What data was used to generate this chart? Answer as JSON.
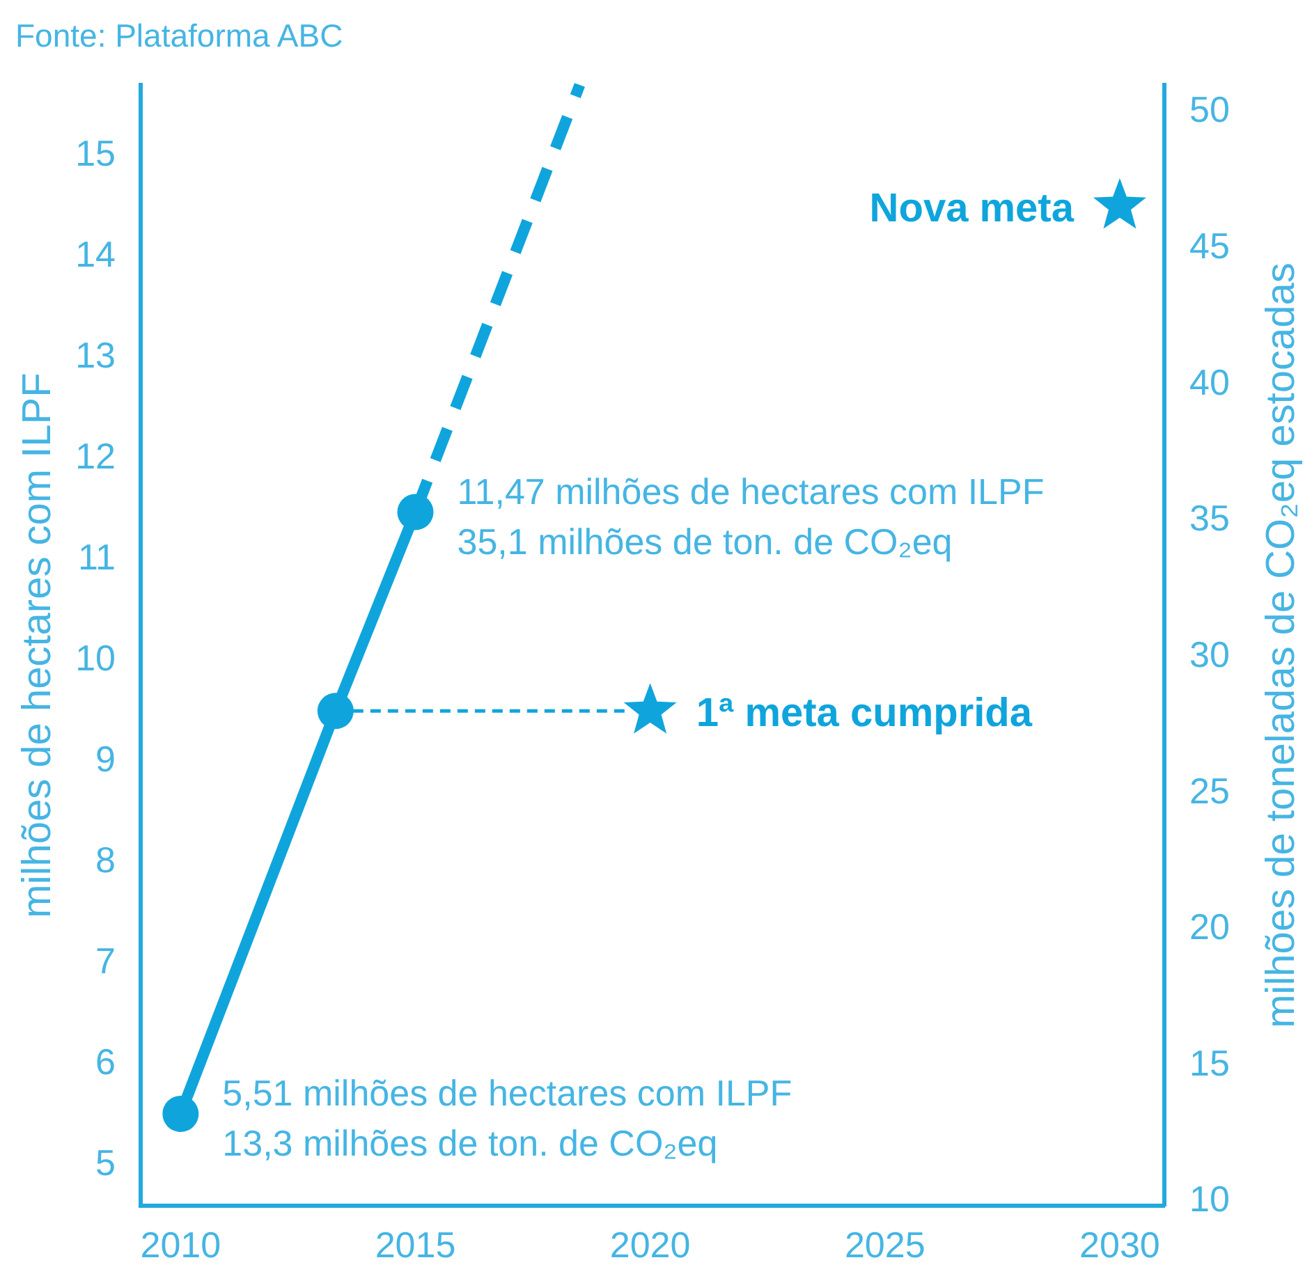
{
  "chart_data": {
    "type": "line",
    "ylabel": "milhões de hectares com ILPF",
    "y2label": "milhões de toneladas de CO₂eq estocadas",
    "xlim": [
      2009.15,
      2030.95
    ],
    "xticks": [
      2010,
      2015,
      2020,
      2025,
      2030
    ],
    "ylim": [
      4.6,
      15.7
    ],
    "yticks": [
      5,
      6,
      7,
      8,
      9,
      10,
      11,
      12,
      13,
      14,
      15
    ],
    "y2lim": [
      9.85,
      51
    ],
    "y2ticks": [
      10,
      15,
      20,
      25,
      30,
      35,
      40,
      45,
      50
    ],
    "series": [
      {
        "color": "#0fa5dc",
        "x": [
          2010,
          2013.3,
          2015
        ],
        "values": [
          5.51,
          9.5,
          11.47
        ],
        "marker": "circle",
        "line_style": "solid"
      },
      {
        "color": "#0fa5dc",
        "x": [
          2015,
          2018.5
        ],
        "values": [
          11.47,
          15.7
        ],
        "marker": "none",
        "line_style": "dashed"
      },
      {
        "color": "#0fa5dc",
        "x": [
          2013.3,
          2019.5
        ],
        "values": [
          9.5,
          9.5
        ],
        "marker": "none",
        "line_style": "dashed"
      },
      {
        "type": "scatter",
        "color": "#0fa5dc",
        "x": [
          2020,
          2030
        ],
        "values": [
          9.5,
          14.5
        ],
        "marker": "star"
      }
    ],
    "annotations": [
      "Fonte: Plataforma ABC",
      {
        "text": "5,51 milhões de hectares com ILPF\n13,3 milhões de ton. de CO₂eq",
        "x": 2010,
        "y": 5.51
      },
      {
        "text": "11,47 milhões de hectares com ILPF\n35,1 milhões de ton. de CO₂eq",
        "x": 2015,
        "y": 11.47
      },
      {
        "text": "1ª meta cumprida",
        "x": 2020,
        "y": 9.5
      },
      {
        "text": "Nova meta",
        "x": 2030,
        "y": 14.5
      }
    ]
  }
}
